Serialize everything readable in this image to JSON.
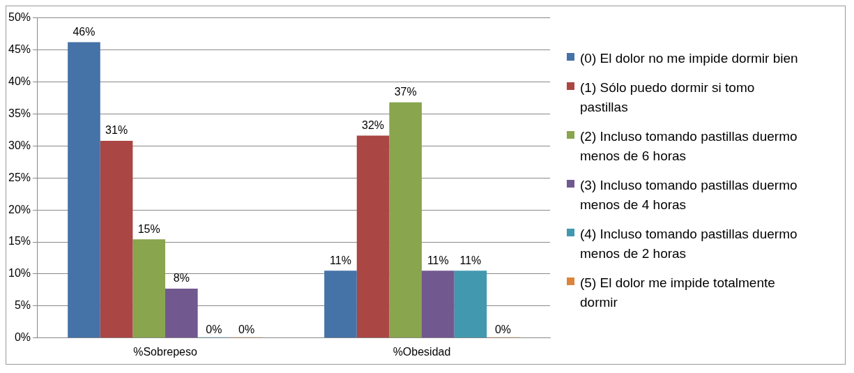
{
  "chart_data": {
    "type": "bar",
    "categories": [
      "%Sobrepeso",
      "%Obesidad"
    ],
    "series": [
      {
        "name": "(0) El dolor no me impide dormir bien",
        "color": "#4572a7",
        "values": [
          46.2,
          10.5
        ],
        "value_labels": [
          "46%",
          "11%"
        ]
      },
      {
        "name": " (1) Sólo puedo dormir si tomo pastillas",
        "color": "#aa4643",
        "values": [
          30.8,
          31.6
        ],
        "value_labels": [
          "31%",
          "32%"
        ]
      },
      {
        "name": " (2) Incluso tomando pastillas duermo menos de 6 horas",
        "color": "#89a54e",
        "values": [
          15.4,
          36.8
        ],
        "value_labels": [
          "15%",
          "37%"
        ]
      },
      {
        "name": " (3) Incluso tomando pastillas duermo menos de 4 horas",
        "color": "#71588f",
        "values": [
          7.7,
          10.5
        ],
        "value_labels": [
          "8%",
          "11%"
        ]
      },
      {
        "name": " (4) Incluso tomando pastillas duermo menos de 2 horas",
        "color": "#4198af",
        "values": [
          0,
          10.5
        ],
        "value_labels": [
          "0%",
          "11%"
        ]
      },
      {
        "name": " (5) El dolor me impide totalmente dormir",
        "color": "#db843d",
        "values": [
          0,
          0
        ],
        "value_labels": [
          "0%",
          "0%"
        ]
      }
    ],
    "ylim": [
      0,
      50
    ],
    "yticks": [
      {
        "value": 0,
        "label": "0%"
      },
      {
        "value": 5,
        "label": "5%"
      },
      {
        "value": 10,
        "label": "10%"
      },
      {
        "value": 15,
        "label": "15%"
      },
      {
        "value": 20,
        "label": "20%"
      },
      {
        "value": 25,
        "label": "25%"
      },
      {
        "value": 30,
        "label": "30%"
      },
      {
        "value": 35,
        "label": "35%"
      },
      {
        "value": 40,
        "label": "40%"
      },
      {
        "value": 45,
        "label": "45%"
      },
      {
        "value": 50,
        "label": "50%"
      }
    ],
    "grid": "y",
    "legend": "right"
  }
}
